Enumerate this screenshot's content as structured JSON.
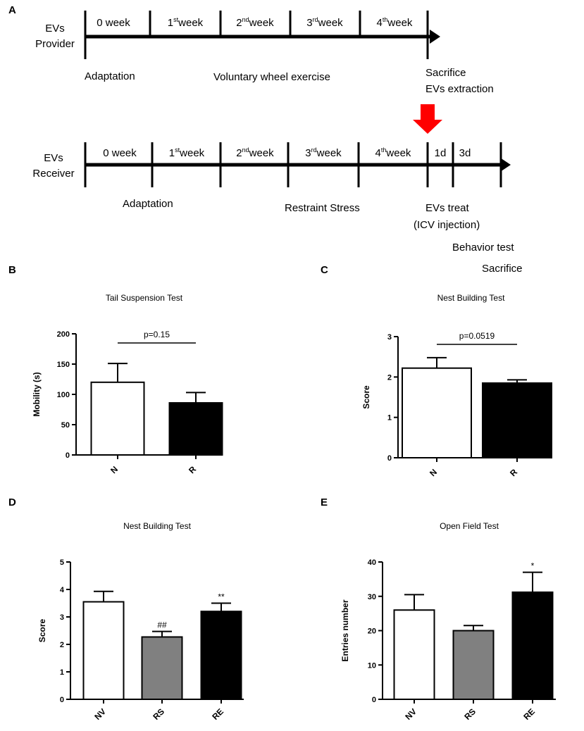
{
  "timeline": {
    "panel_letter": "A",
    "provider": {
      "label_line1": "EVs",
      "label_line2": "Provider",
      "weeks": [
        {
          "main": "0 week",
          "sup": "",
          "rest": ""
        },
        {
          "main": "1",
          "sup": "st",
          "rest": "week"
        },
        {
          "main": "2",
          "sup": "nd",
          "rest": "week"
        },
        {
          "main": "3",
          "sup": "rd",
          "rest": "week"
        },
        {
          "main": "4",
          "sup": "th",
          "rest": "week"
        }
      ],
      "adaptation": "Adaptation",
      "exercise": "Voluntary wheel exercise",
      "sacrifice": "Sacrifice",
      "extraction": "EVs extraction"
    },
    "receiver": {
      "label_line1": "EVs",
      "label_line2": "Receiver",
      "weeks": [
        {
          "main": "0 week",
          "sup": "",
          "rest": ""
        },
        {
          "main": "1",
          "sup": "st",
          "rest": "week"
        },
        {
          "main": "2",
          "sup": "nd",
          "rest": "week"
        },
        {
          "main": "3",
          "sup": "rd",
          "rest": "week"
        },
        {
          "main": "4",
          "sup": "th",
          "rest": "week"
        }
      ],
      "day1": "1d",
      "day3": "3d",
      "adaptation": "Adaptation",
      "stress": "Restraint Stress",
      "treat": "EVs treat",
      "injection": "(ICV injection)",
      "behavior": "Behavior test",
      "sacrifice": "Sacrifice"
    },
    "arrow_color": "#ff0000"
  },
  "chart_data": [
    {
      "panel": "B",
      "type": "bar",
      "title": "Tail Suspension Test",
      "ylabel": "Mobility (s)",
      "ylim": [
        0,
        200
      ],
      "yticks": [
        "0",
        "50",
        "100",
        "150",
        "200"
      ],
      "categories": [
        "N",
        "R"
      ],
      "values": [
        120,
        86
      ],
      "errors": [
        31,
        17
      ],
      "colors": [
        "#ffffff",
        "#000000"
      ],
      "annotation": "p=0.15"
    },
    {
      "panel": "C",
      "type": "bar",
      "title": "Nest Building Test",
      "ylabel": "Score",
      "ylim": [
        0,
        3
      ],
      "yticks": [
        "0",
        "1",
        "2",
        "3"
      ],
      "categories": [
        "N",
        "R"
      ],
      "values": [
        2.22,
        1.85
      ],
      "errors": [
        0.26,
        0.08
      ],
      "colors": [
        "#ffffff",
        "#000000"
      ],
      "annotation": "p=0.0519"
    },
    {
      "panel": "D",
      "type": "bar",
      "title": "Nest Building Test",
      "ylabel": "Score",
      "ylim": [
        0,
        5
      ],
      "yticks": [
        "0",
        "1",
        "2",
        "3",
        "4",
        "5"
      ],
      "categories": [
        "NV",
        "RS",
        "RE"
      ],
      "values": [
        3.55,
        2.27,
        3.2
      ],
      "errors": [
        0.38,
        0.2,
        0.3
      ],
      "colors": [
        "#ffffff",
        "#808080",
        "#000000"
      ],
      "markers": [
        "",
        "##",
        "**"
      ]
    },
    {
      "panel": "E",
      "type": "bar",
      "title": "Open Field Test",
      "ylabel": "Entries number",
      "ylim": [
        0,
        40
      ],
      "yticks": [
        "0",
        "10",
        "20",
        "30",
        "40"
      ],
      "categories": [
        "NV",
        "RS",
        "RE"
      ],
      "values": [
        26,
        20,
        31.2
      ],
      "errors": [
        4.5,
        1.5,
        5.8
      ],
      "colors": [
        "#ffffff",
        "#808080",
        "#000000"
      ],
      "markers": [
        "",
        "",
        "*"
      ]
    }
  ]
}
